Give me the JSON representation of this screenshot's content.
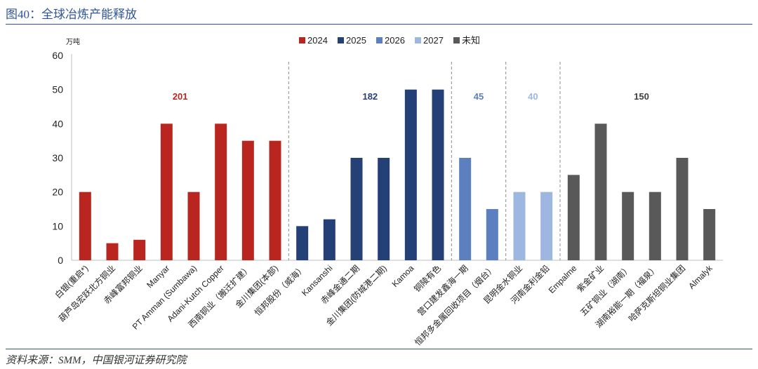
{
  "header": {
    "title": "图40：全球冶炼产能释放"
  },
  "footer": {
    "source": "资料来源：SMM，中国银河证券研究院"
  },
  "colors": {
    "2024": "#b8261f",
    "2025": "#253f77",
    "2026": "#5b7fbf",
    "2027": "#9db7e0",
    "未知": "#595959"
  },
  "chart_data": {
    "type": "bar",
    "ylabel": "万吨",
    "ylim": [
      0,
      60
    ],
    "yticks": [
      0,
      10,
      20,
      30,
      40,
      50,
      60
    ],
    "legend": [
      "2024",
      "2025",
      "2026",
      "2027",
      "未知"
    ],
    "legend_position": "top-center",
    "categories": [
      "白银(重启*)",
      "葫芦岛宏跃北方铜业",
      "赤峰富邦铜业",
      "Manyar",
      "PT Amman (Sumbawa)",
      "Adani-Kutch Copper",
      "西南铜业（搬迁扩建）",
      "金川集团(本部)",
      "恒邦股份（威海）",
      "Kansanshi",
      "赤峰金通二期",
      "金川集团(防城港二期)",
      "Kamoa",
      "铜陵有色",
      "营口建发鑫海一期",
      "恒邦多金属回收项目（烟台）",
      "昆明金水铜业",
      "河南金利金铅",
      "Empalme",
      "紫金矿业",
      "五矿铜业（湖南）",
      "湖南裕能一期（福泉）",
      "哈萨克斯坦铜业集团",
      "Almalyk"
    ],
    "values": [
      20,
      5,
      6,
      40,
      20,
      40,
      35,
      35,
      10,
      12,
      30,
      30,
      50,
      50,
      30,
      15,
      20,
      20,
      25,
      40,
      20,
      20,
      30,
      15
    ],
    "groups": [
      "2024",
      "2024",
      "2024",
      "2024",
      "2024",
      "2024",
      "2024",
      "2024",
      "2025",
      "2025",
      "2025",
      "2025",
      "2025",
      "2025",
      "2026",
      "2026",
      "2027",
      "2027",
      "未知",
      "未知",
      "未知",
      "未知",
      "未知",
      "未知"
    ],
    "group_totals": [
      {
        "group": "2024",
        "total": "201"
      },
      {
        "group": "2025",
        "total": "182"
      },
      {
        "group": "2026",
        "total": "45"
      },
      {
        "group": "2027",
        "total": "40"
      },
      {
        "group": "未知",
        "total": "150"
      }
    ]
  }
}
